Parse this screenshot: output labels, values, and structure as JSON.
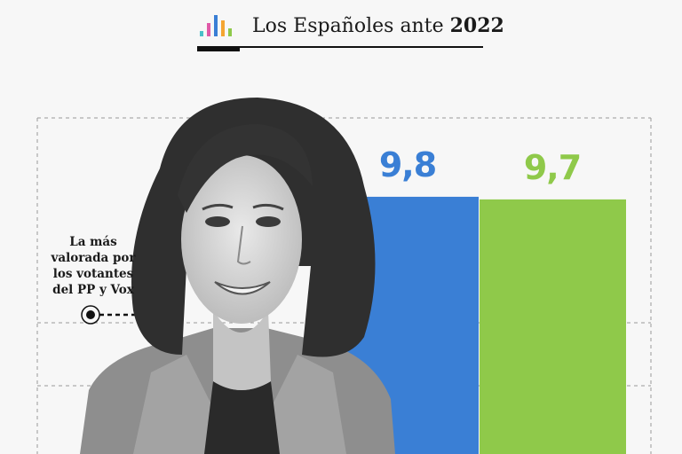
{
  "header": {
    "title_prefix": "Los Españoles ante",
    "title_year": "2022",
    "logo_icon": "bar-chart-logo-icon",
    "logo_colors": [
      "#4bc0c8",
      "#e05aa8",
      "#3a7fd5",
      "#f4a531",
      "#8fc94a"
    ]
  },
  "annotation": {
    "text": "La más valorada por los votantes del PP y Vox"
  },
  "photo": {
    "icon": "woman-portrait-photo"
  },
  "chart_data": {
    "type": "bar",
    "categories": [
      "",
      ""
    ],
    "values": [
      9.8,
      9.7
    ],
    "value_labels": [
      "9,8",
      "9,7"
    ],
    "colors": [
      "#3a7fd5",
      "#8fc94a"
    ],
    "ylim": [
      0,
      10
    ],
    "grid": true,
    "title": "",
    "xlabel": "",
    "ylabel": ""
  }
}
